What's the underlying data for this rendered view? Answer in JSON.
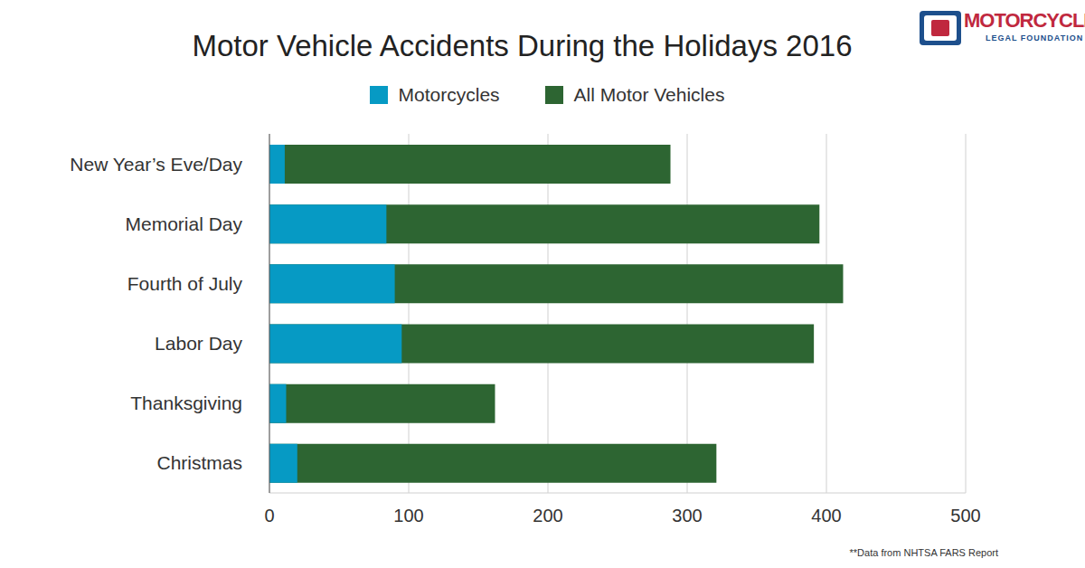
{
  "chart_data": {
    "type": "bar",
    "orientation": "horizontal",
    "title": "Motor Vehicle Accidents During the Holidays 2016",
    "categories": [
      "New Year’s Eve/Day",
      "Memorial Day",
      "Fourth of July",
      "Labor Day",
      "Thanksgiving",
      "Christmas"
    ],
    "series": [
      {
        "name": "Motorcycles",
        "color": "#069ac4",
        "values": [
          11,
          84,
          90,
          95,
          12,
          20
        ]
      },
      {
        "name": "All Motor Vehicles",
        "color": "#2d6532",
        "values": [
          288,
          395,
          412,
          391,
          162,
          321
        ]
      }
    ],
    "xlim": [
      0,
      500
    ],
    "xticks": [
      0,
      100,
      200,
      300,
      400,
      500
    ],
    "grid": true,
    "legend": "top",
    "source": "**Data from NHTSA FARS Report",
    "logo_text": [
      "MOTORCYCLE",
      "LEGAL FOUNDATION"
    ]
  }
}
